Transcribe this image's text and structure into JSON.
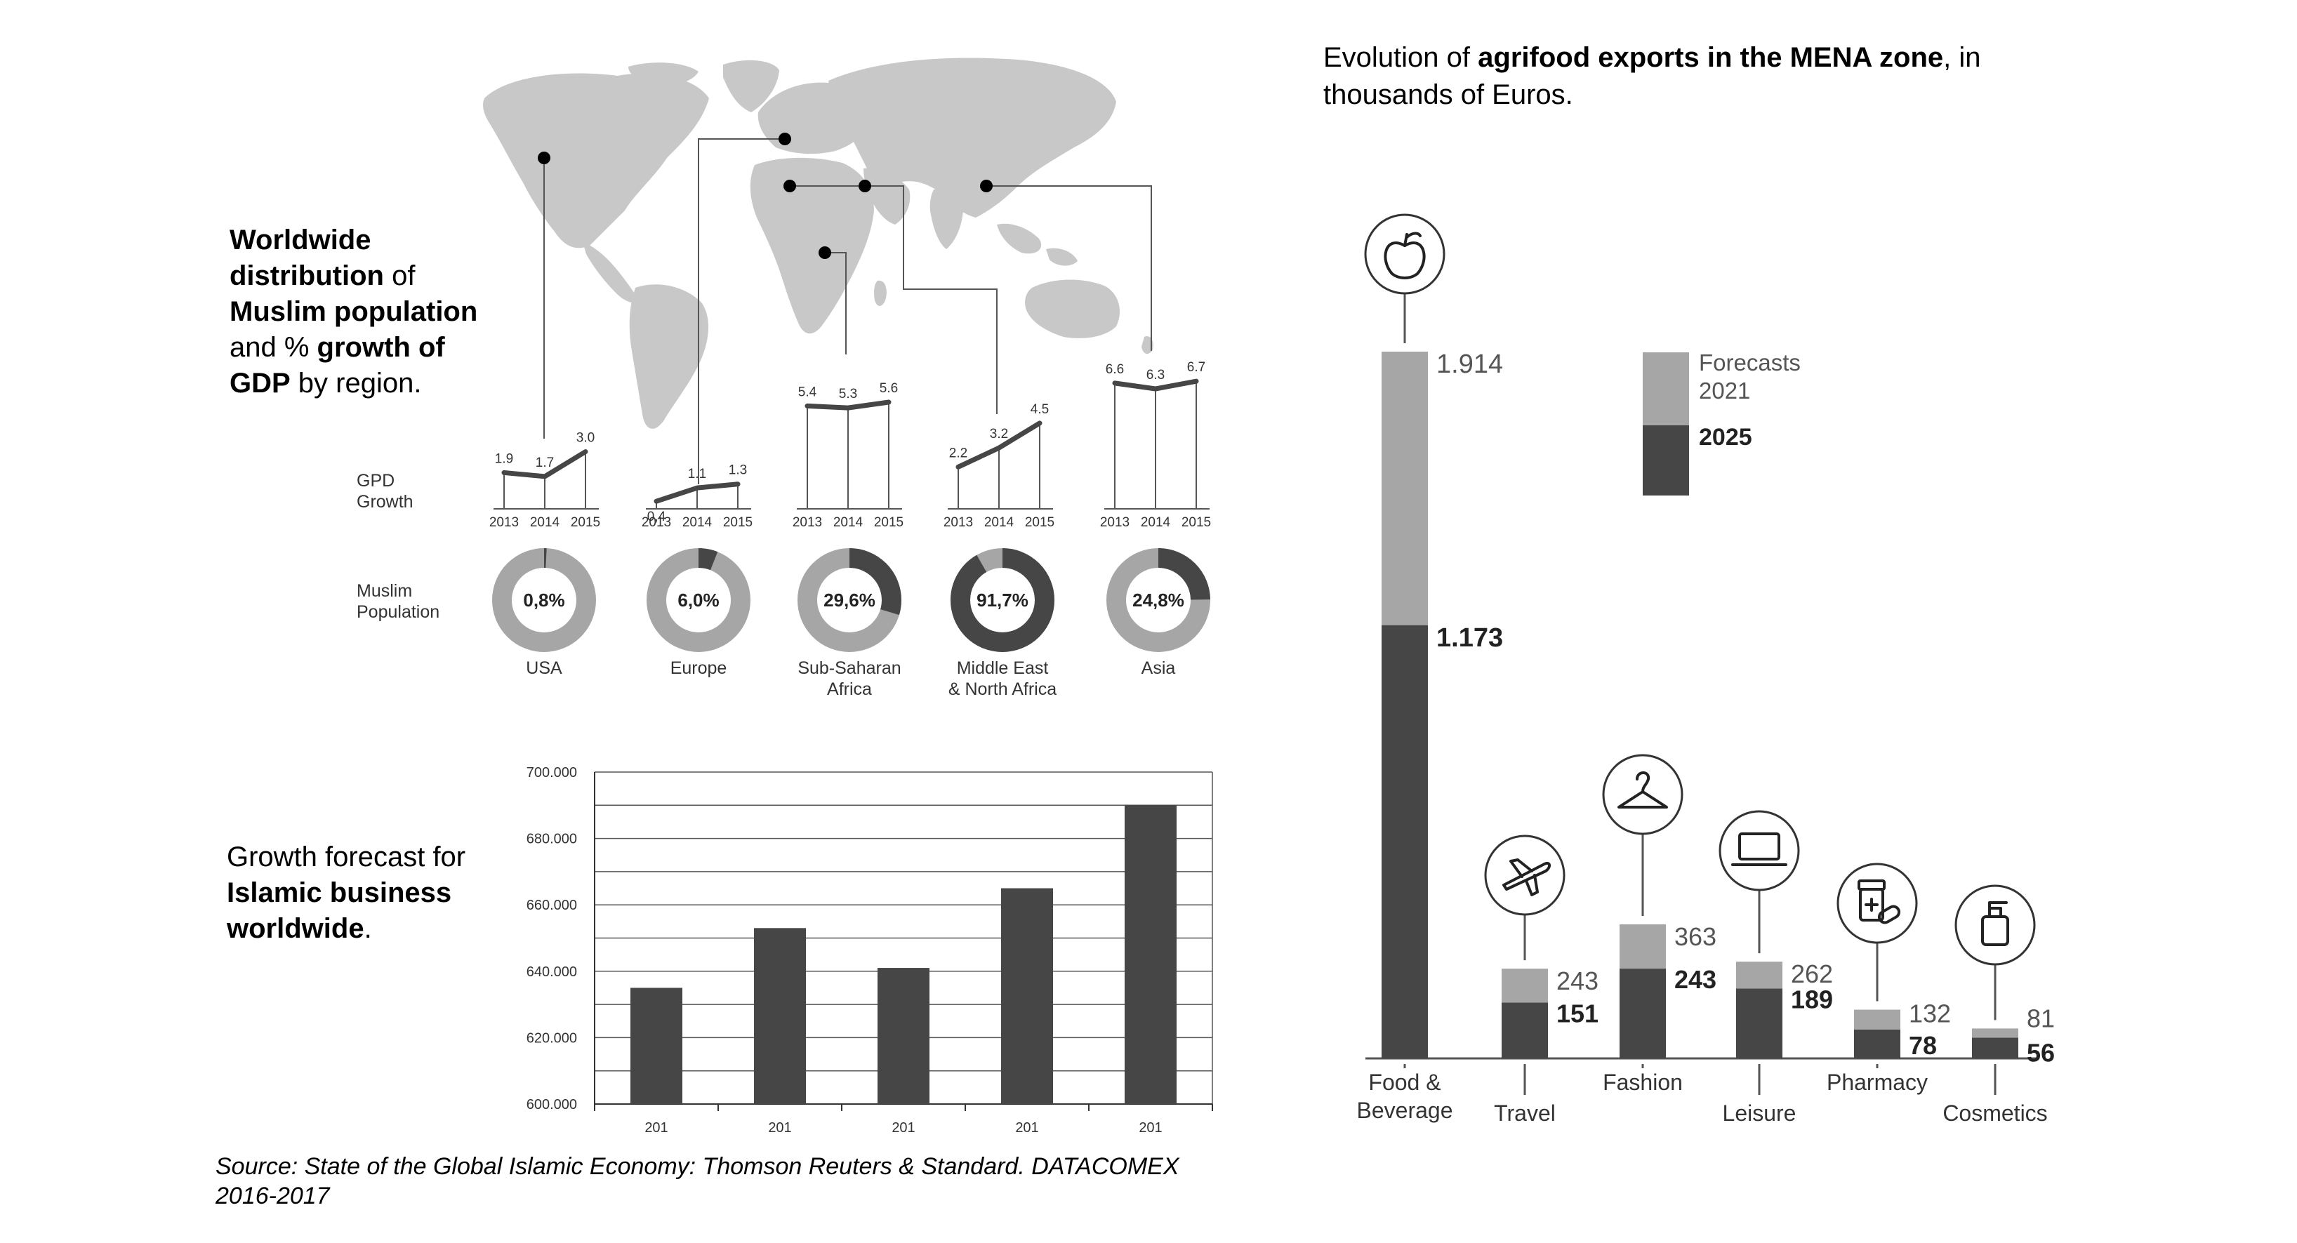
{
  "colors": {
    "dark": "#464646",
    "light": "#a6a6a6",
    "map": "#c8c8c8",
    "background": "#ffffff"
  },
  "world_panel": {
    "title_parts": [
      {
        "text": "Worldwide",
        "bold": true,
        "line": 0
      },
      {
        "text": "distribution",
        "bold": true,
        "line": 1
      },
      {
        "text": " of",
        "bold": false,
        "line": 1
      },
      {
        "text": "Muslim population",
        "bold": true,
        "line": 2
      },
      {
        "text": "and % ",
        "bold": false,
        "line": 3
      },
      {
        "text": "growth of",
        "bold": true,
        "line": 3
      },
      {
        "text": "GDP",
        "bold": true,
        "line": 4
      },
      {
        "text": " by region.",
        "bold": false,
        "line": 4
      }
    ],
    "gdp_label": [
      "GPD",
      "Growth"
    ],
    "pop_label": [
      "Muslim",
      "Population"
    ],
    "years": [
      "2013",
      "2014",
      "2015"
    ],
    "map_icon": "world-map-icon"
  },
  "business_panel": {
    "title_parts": [
      {
        "text": "Growth forecast for",
        "bold": false,
        "line": 0
      },
      {
        "text": "Islamic business",
        "bold": true,
        "line": 1
      },
      {
        "text": "worldwide",
        "bold": true,
        "line": 2
      },
      {
        "text": ".",
        "bold": false,
        "line": 2
      }
    ]
  },
  "exports_panel": {
    "title_parts": [
      {
        "text": "Evolution of ",
        "bold": false,
        "line": 0
      },
      {
        "text": "agrifood exports in the MENA zone",
        "bold": true,
        "line": 0
      },
      {
        "text": ", in",
        "bold": false,
        "line": 0
      },
      {
        "text": "thousands of Euros.",
        "bold": false,
        "line": 1
      }
    ],
    "legend": [
      {
        "label": [
          "Forecasts",
          "2021"
        ],
        "color": "#a6a6a6"
      },
      {
        "label": [
          "2025"
        ],
        "color": "#464646",
        "bold": true
      }
    ]
  },
  "source": [
    "Source: State of the Global Islamic Economy:  Thomson Reuters & Standard. DATACOMEX",
    "2016-2017"
  ],
  "chart_data": [
    {
      "type": "line",
      "x": [
        "2013",
        "2014",
        "2015"
      ],
      "series": [
        {
          "name": "USA",
          "values": [
            1.9,
            1.7,
            3.0
          ],
          "labels": [
            "1.9",
            "1.7",
            "3.0"
          ]
        },
        {
          "name": "Europe",
          "values": [
            0.4,
            1.1,
            1.3
          ],
          "labels": [
            "0,4",
            "1.1",
            "1.3"
          ]
        },
        {
          "name": "Sub-Saharan Africa",
          "values": [
            5.4,
            5.3,
            5.6
          ],
          "labels": [
            "5.4",
            "5.3",
            "5.6"
          ]
        },
        {
          "name": "Middle East & North Africa",
          "values": [
            2.2,
            3.2,
            4.5
          ],
          "labels": [
            "2.2",
            "3.2",
            "4.5"
          ]
        },
        {
          "name": "Asia",
          "values": [
            6.6,
            6.3,
            6.7
          ],
          "labels": [
            "6.6",
            "6.3",
            "6.7"
          ]
        }
      ]
    },
    {
      "type": "pie",
      "slices": [
        {
          "region": [
            "USA"
          ],
          "value": 0.8,
          "label": "0,8%"
        },
        {
          "region": [
            "Europe"
          ],
          "value": 6.0,
          "label": "6,0%"
        },
        {
          "region": [
            "Sub-Saharan",
            "Africa"
          ],
          "value": 29.6,
          "label": "29,6%"
        },
        {
          "region": [
            "Middle East",
            "& North Africa"
          ],
          "value": 91.7,
          "label": "91,7%"
        },
        {
          "region": [
            "Asia"
          ],
          "value": 24.8,
          "label": "24,8%"
        }
      ]
    },
    {
      "type": "bar",
      "categories": [
        "201",
        "201",
        "201",
        "201",
        "201"
      ],
      "values": [
        635000,
        653000,
        641000,
        665000,
        690000
      ],
      "ylim": [
        600000,
        700000
      ],
      "yticks": [
        {
          "value": 600000,
          "label": "600.000"
        },
        {
          "value": 620000,
          "label": "620.000"
        },
        {
          "value": 640000,
          "label": "640.000"
        },
        {
          "value": 660000,
          "label": "660.000"
        },
        {
          "value": 680000,
          "label": "680.000"
        },
        {
          "value": 700000,
          "label": "700.000"
        }
      ],
      "grid": true
    },
    {
      "type": "bar",
      "stacked": true,
      "categories": [
        {
          "label": [
            "Food &",
            "Beverage"
          ],
          "icon": "apple-icon"
        },
        {
          "label": [
            "Travel"
          ],
          "icon": "airplane-icon"
        },
        {
          "label": [
            "Fashion"
          ],
          "icon": "hanger-icon"
        },
        {
          "label": [
            "Leisure"
          ],
          "icon": "laptop-icon"
        },
        {
          "label": [
            "Pharmacy"
          ],
          "icon": "medicine-icon"
        },
        {
          "label": [
            "Cosmetics"
          ],
          "icon": "lotion-bottle-icon"
        }
      ],
      "series": [
        {
          "name": "2021",
          "values": [
            1.914,
            0.243,
            0.363,
            0.262,
            0.132,
            0.081
          ],
          "labels": [
            "1.914",
            "243",
            "363",
            "262",
            "132",
            "81"
          ]
        },
        {
          "name": "2025",
          "values": [
            1.173,
            0.151,
            0.243,
            0.189,
            0.078,
            0.056
          ],
          "labels": [
            "1.173",
            "151",
            "243",
            "189",
            "78",
            "56"
          ]
        }
      ]
    }
  ]
}
